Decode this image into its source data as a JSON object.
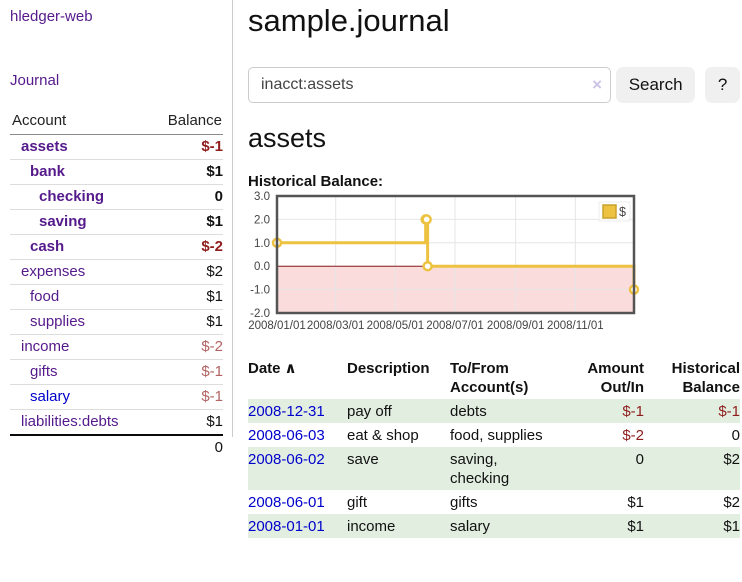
{
  "app": {
    "brand": "hledger-web",
    "nav_journal": "Journal"
  },
  "sidebar": {
    "headers": {
      "account": "Account",
      "balance": "Balance"
    },
    "accounts": [
      {
        "name": "assets",
        "indent": 1,
        "bold": true,
        "balance": "$-1",
        "balance_style": "negative",
        "link_color": "purple"
      },
      {
        "name": "bank",
        "indent": 2,
        "bold": true,
        "balance": "$1",
        "balance_style": "normal",
        "link_color": "purple"
      },
      {
        "name": "checking",
        "indent": 3,
        "bold": true,
        "balance": "0",
        "balance_style": "normal",
        "link_color": "purple"
      },
      {
        "name": "saving",
        "indent": 3,
        "bold": true,
        "balance": "$1",
        "balance_style": "normal",
        "link_color": "purple"
      },
      {
        "name": "cash",
        "indent": 2,
        "bold": true,
        "balance": "$-2",
        "balance_style": "negative",
        "link_color": "purple"
      },
      {
        "name": "expenses",
        "indent": 1,
        "bold": false,
        "balance": "$2",
        "balance_style": "normal",
        "link_color": "purple"
      },
      {
        "name": "food",
        "indent": 2,
        "bold": false,
        "balance": "$1",
        "balance_style": "normal",
        "link_color": "purple"
      },
      {
        "name": "supplies",
        "indent": 2,
        "bold": false,
        "balance": "$1",
        "balance_style": "normal",
        "link_color": "purple"
      },
      {
        "name": "income",
        "indent": 1,
        "bold": false,
        "balance": "$-2",
        "balance_style": "negative-muted",
        "link_color": "purple"
      },
      {
        "name": "gifts",
        "indent": 2,
        "bold": false,
        "balance": "$-1",
        "balance_style": "negative-muted",
        "link_color": "purple"
      },
      {
        "name": "salary",
        "indent": 2,
        "bold": false,
        "balance": "$-1",
        "balance_style": "negative-muted",
        "link_color": "blue"
      },
      {
        "name": "liabilities:debts",
        "indent": 1,
        "bold": false,
        "balance": "$1",
        "balance_style": "normal",
        "link_color": "purple"
      }
    ],
    "total": "0"
  },
  "header": {
    "title": "sample.journal"
  },
  "search": {
    "value": "inacct:assets",
    "clear_icon": "×",
    "button_label": "Search",
    "help_label": "?"
  },
  "account_page": {
    "heading": "assets",
    "chart_label": "Historical Balance:"
  },
  "chart_data": {
    "type": "line",
    "step": true,
    "title": "Historical Balance:",
    "series": [
      {
        "name": "$",
        "points": [
          [
            "2008-01-01",
            1
          ],
          [
            "2008-06-01",
            2
          ],
          [
            "2008-06-02",
            2
          ],
          [
            "2008-06-03",
            0
          ],
          [
            "2008-12-31",
            -1
          ]
        ]
      }
    ],
    "xlim": [
      "2008-01-01",
      "2008-12-31"
    ],
    "ylim": [
      -2,
      3
    ],
    "yticks": [
      3.0,
      2.0,
      1.0,
      0.0,
      -1.0,
      -2.0
    ],
    "xtick_labels": [
      "2008/01/01",
      "2008/03/01",
      "2008/05/01",
      "2008/07/01",
      "2008/09/01",
      "2008/11/01"
    ],
    "grid": true,
    "legend_position": "top-right",
    "colors": {
      "line": "#edc240",
      "marker_fill": "#ffffff",
      "negative_fill": "#fbdcdc",
      "zero_line": "#8b1a1a",
      "grid": "#e6e6e6",
      "border": "#545454"
    }
  },
  "register": {
    "headers": {
      "date": "Date",
      "sort_icon": "∧",
      "description": "Description",
      "accounts": "To/From Account(s)",
      "amount": "Amount Out/In",
      "balance": "Historical Balance"
    },
    "rows": [
      {
        "date": "2008-12-31",
        "description": "pay off",
        "accounts": "debts",
        "amount": "$-1",
        "amount_negative": true,
        "balance": "$-1",
        "balance_negative": true
      },
      {
        "date": "2008-06-03",
        "description": "eat & shop",
        "accounts": "food, supplies",
        "amount": "$-2",
        "amount_negative": true,
        "balance": "0",
        "balance_negative": false
      },
      {
        "date": "2008-06-02",
        "description": "save",
        "accounts": "saving, checking",
        "amount": "0",
        "amount_negative": false,
        "balance": "$2",
        "balance_negative": false
      },
      {
        "date": "2008-06-01",
        "description": "gift",
        "accounts": "gifts",
        "amount": "$1",
        "amount_negative": false,
        "balance": "$2",
        "balance_negative": false
      },
      {
        "date": "2008-01-01",
        "description": "income",
        "accounts": "salary",
        "amount": "$1",
        "amount_negative": false,
        "balance": "$1",
        "balance_negative": false
      }
    ]
  },
  "colors": {
    "link_purple": "#551a8b",
    "link_blue": "#0000cc",
    "negative_strong": "#8f1d1d",
    "negative_muted": "#b26262",
    "row_stripe_green": "#e2efe0",
    "divider_gray": "#cccccc"
  }
}
